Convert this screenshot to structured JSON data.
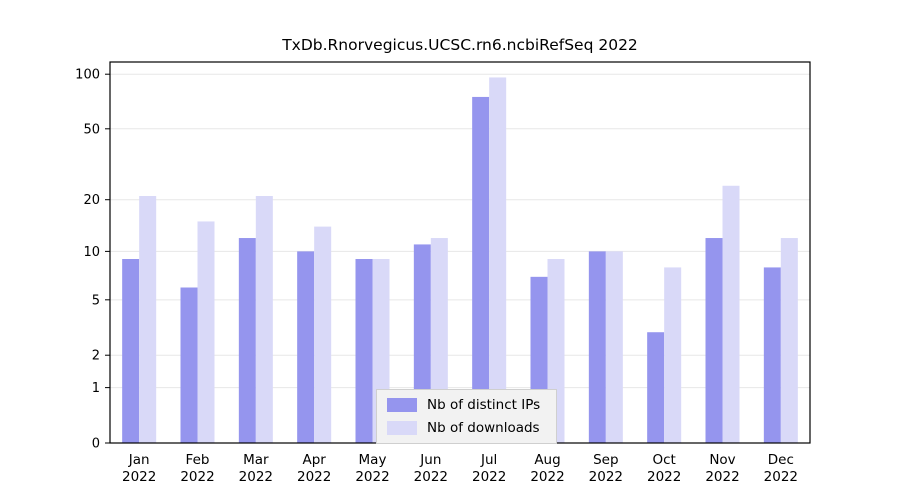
{
  "chart_data": {
    "type": "bar",
    "title": "TxDb.Rnorvegicus.UCSC.rn6.ncbiRefSeq 2022",
    "categories": [
      "Jan 2022",
      "Feb 2022",
      "Mar 2022",
      "Apr 2022",
      "May 2022",
      "Jun 2022",
      "Jul 2022",
      "Aug 2022",
      "Sep 2022",
      "Oct 2022",
      "Nov 2022",
      "Dec 2022"
    ],
    "series": [
      {
        "name": "Nb of distinct IPs",
        "color": "#9595ee",
        "values": [
          9,
          6,
          12,
          10,
          9,
          11,
          75,
          7,
          10,
          3,
          12,
          8
        ]
      },
      {
        "name": "Nb of downloads",
        "color": "#d9d9f8",
        "values": [
          21,
          15,
          21,
          14,
          9,
          12,
          96,
          9,
          10,
          8,
          24,
          12
        ]
      }
    ],
    "xlabel": "",
    "ylabel": "",
    "yscale": "log1p",
    "yticks": [
      0,
      1,
      2,
      5,
      10,
      20,
      50,
      100
    ],
    "ylim": [
      0,
      116
    ],
    "grid": true,
    "legend_position": "bottom-center"
  },
  "colors": {
    "background": "#ffffff",
    "grid": "#e7e7e7",
    "axis": "#000000",
    "legend_bg": "#f2f2f2",
    "legend_border": "#cfcfcf",
    "text": "#000000"
  }
}
